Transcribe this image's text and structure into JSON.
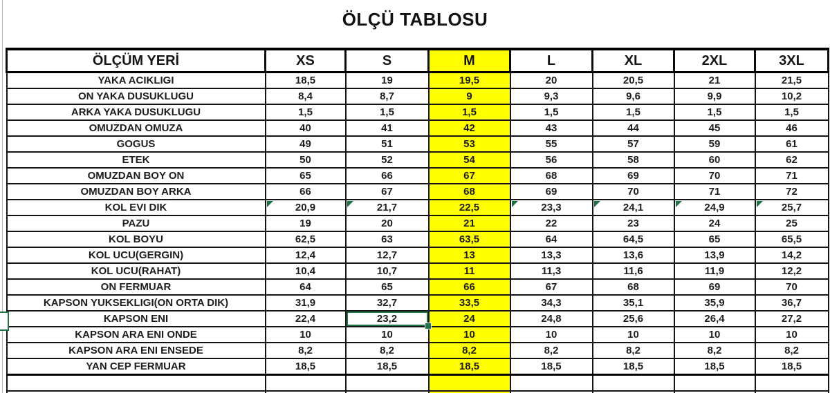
{
  "title": "ÖLÇÜ TABLOSU",
  "table": {
    "columns": [
      "ÖLÇÜM YERİ",
      "XS",
      "S",
      "M",
      "L",
      "XL",
      "2XL",
      "3XL"
    ],
    "highlighted_column": "M",
    "rows": [
      {
        "label": "YAKA ACIKLIGI",
        "values": [
          "18,5",
          "19",
          "19,5",
          "20",
          "20,5",
          "21",
          "21,5"
        ]
      },
      {
        "label": "ON YAKA DUSUKLUGU",
        "values": [
          "8,4",
          "8,7",
          "9",
          "9,3",
          "9,6",
          "9,9",
          "10,2"
        ]
      },
      {
        "label": "ARKA YAKA DUSUKLUGU",
        "values": [
          "1,5",
          "1,5",
          "1,5",
          "1,5",
          "1,5",
          "1,5",
          "1,5"
        ]
      },
      {
        "label": "OMUZDAN OMUZA",
        "values": [
          "40",
          "41",
          "42",
          "43",
          "44",
          "45",
          "46"
        ]
      },
      {
        "label": "GOGUS",
        "values": [
          "49",
          "51",
          "53",
          "55",
          "57",
          "59",
          "61"
        ]
      },
      {
        "label": "ETEK",
        "values": [
          "50",
          "52",
          "54",
          "56",
          "58",
          "60",
          "62"
        ]
      },
      {
        "label": "OMUZDAN BOY ON",
        "values": [
          "65",
          "66",
          "67",
          "68",
          "69",
          "70",
          "71"
        ]
      },
      {
        "label": "OMUZDAN BOY ARKA",
        "values": [
          "66",
          "67",
          "68",
          "69",
          "70",
          "71",
          "72"
        ]
      },
      {
        "label": "KOL EVI DIK",
        "values": [
          "20,9",
          "21,7",
          "22,5",
          "23,3",
          "24,1",
          "24,9",
          "25,7"
        ],
        "triangles": [
          true,
          true,
          false,
          true,
          true,
          true,
          true
        ]
      },
      {
        "label": "PAZU",
        "values": [
          "19",
          "20",
          "21",
          "22",
          "23",
          "24",
          "25"
        ]
      },
      {
        "label": "KOL BOYU",
        "values": [
          "62,5",
          "63",
          "63,5",
          "64",
          "64,5",
          "65",
          "65,5"
        ]
      },
      {
        "label": "KOL UCU(GERGIN)",
        "values": [
          "12,4",
          "12,7",
          "13",
          "13,3",
          "13,6",
          "13,9",
          "14,2"
        ]
      },
      {
        "label": "KOL UCU(RAHAT)",
        "values": [
          "10,4",
          "10,7",
          "11",
          "11,3",
          "11,6",
          "11,9",
          "12,2"
        ]
      },
      {
        "label": "ON FERMUAR",
        "values": [
          "64",
          "65",
          "66",
          "67",
          "68",
          "69",
          "70"
        ]
      },
      {
        "label": "KAPSON YUKSEKLIGI(ON ORTA DIK)",
        "values": [
          "31,9",
          "32,7",
          "33,5",
          "34,3",
          "35,1",
          "35,9",
          "36,7"
        ]
      },
      {
        "label": "KAPSON ENI",
        "values": [
          "22,4",
          "23,2",
          "24",
          "24,8",
          "25,6",
          "26,4",
          "27,2"
        ]
      },
      {
        "label": "KAPSON ARA ENI ONDE",
        "values": [
          "10",
          "10",
          "10",
          "10",
          "10",
          "10",
          "10"
        ]
      },
      {
        "label": "KAPSON ARA ENI ENSEDE",
        "values": [
          "8,2",
          "8,2",
          "8,2",
          "8,2",
          "8,2",
          "8,2",
          "8,2"
        ]
      },
      {
        "label": "YAN CEP FERMUAR",
        "values": [
          "18,5",
          "18,5",
          "18,5",
          "18,5",
          "18,5",
          "18,5",
          "18,5"
        ]
      }
    ]
  },
  "selection": {
    "row_index": 15,
    "col_index": 1,
    "row_label": "KAPSON ENI",
    "column": "S",
    "value": "23,2"
  },
  "colors": {
    "highlight_yellow": "#FFFF00",
    "selection_green": "#217346",
    "error_triangle_green": "#1E7145",
    "grid_black": "#141414"
  }
}
